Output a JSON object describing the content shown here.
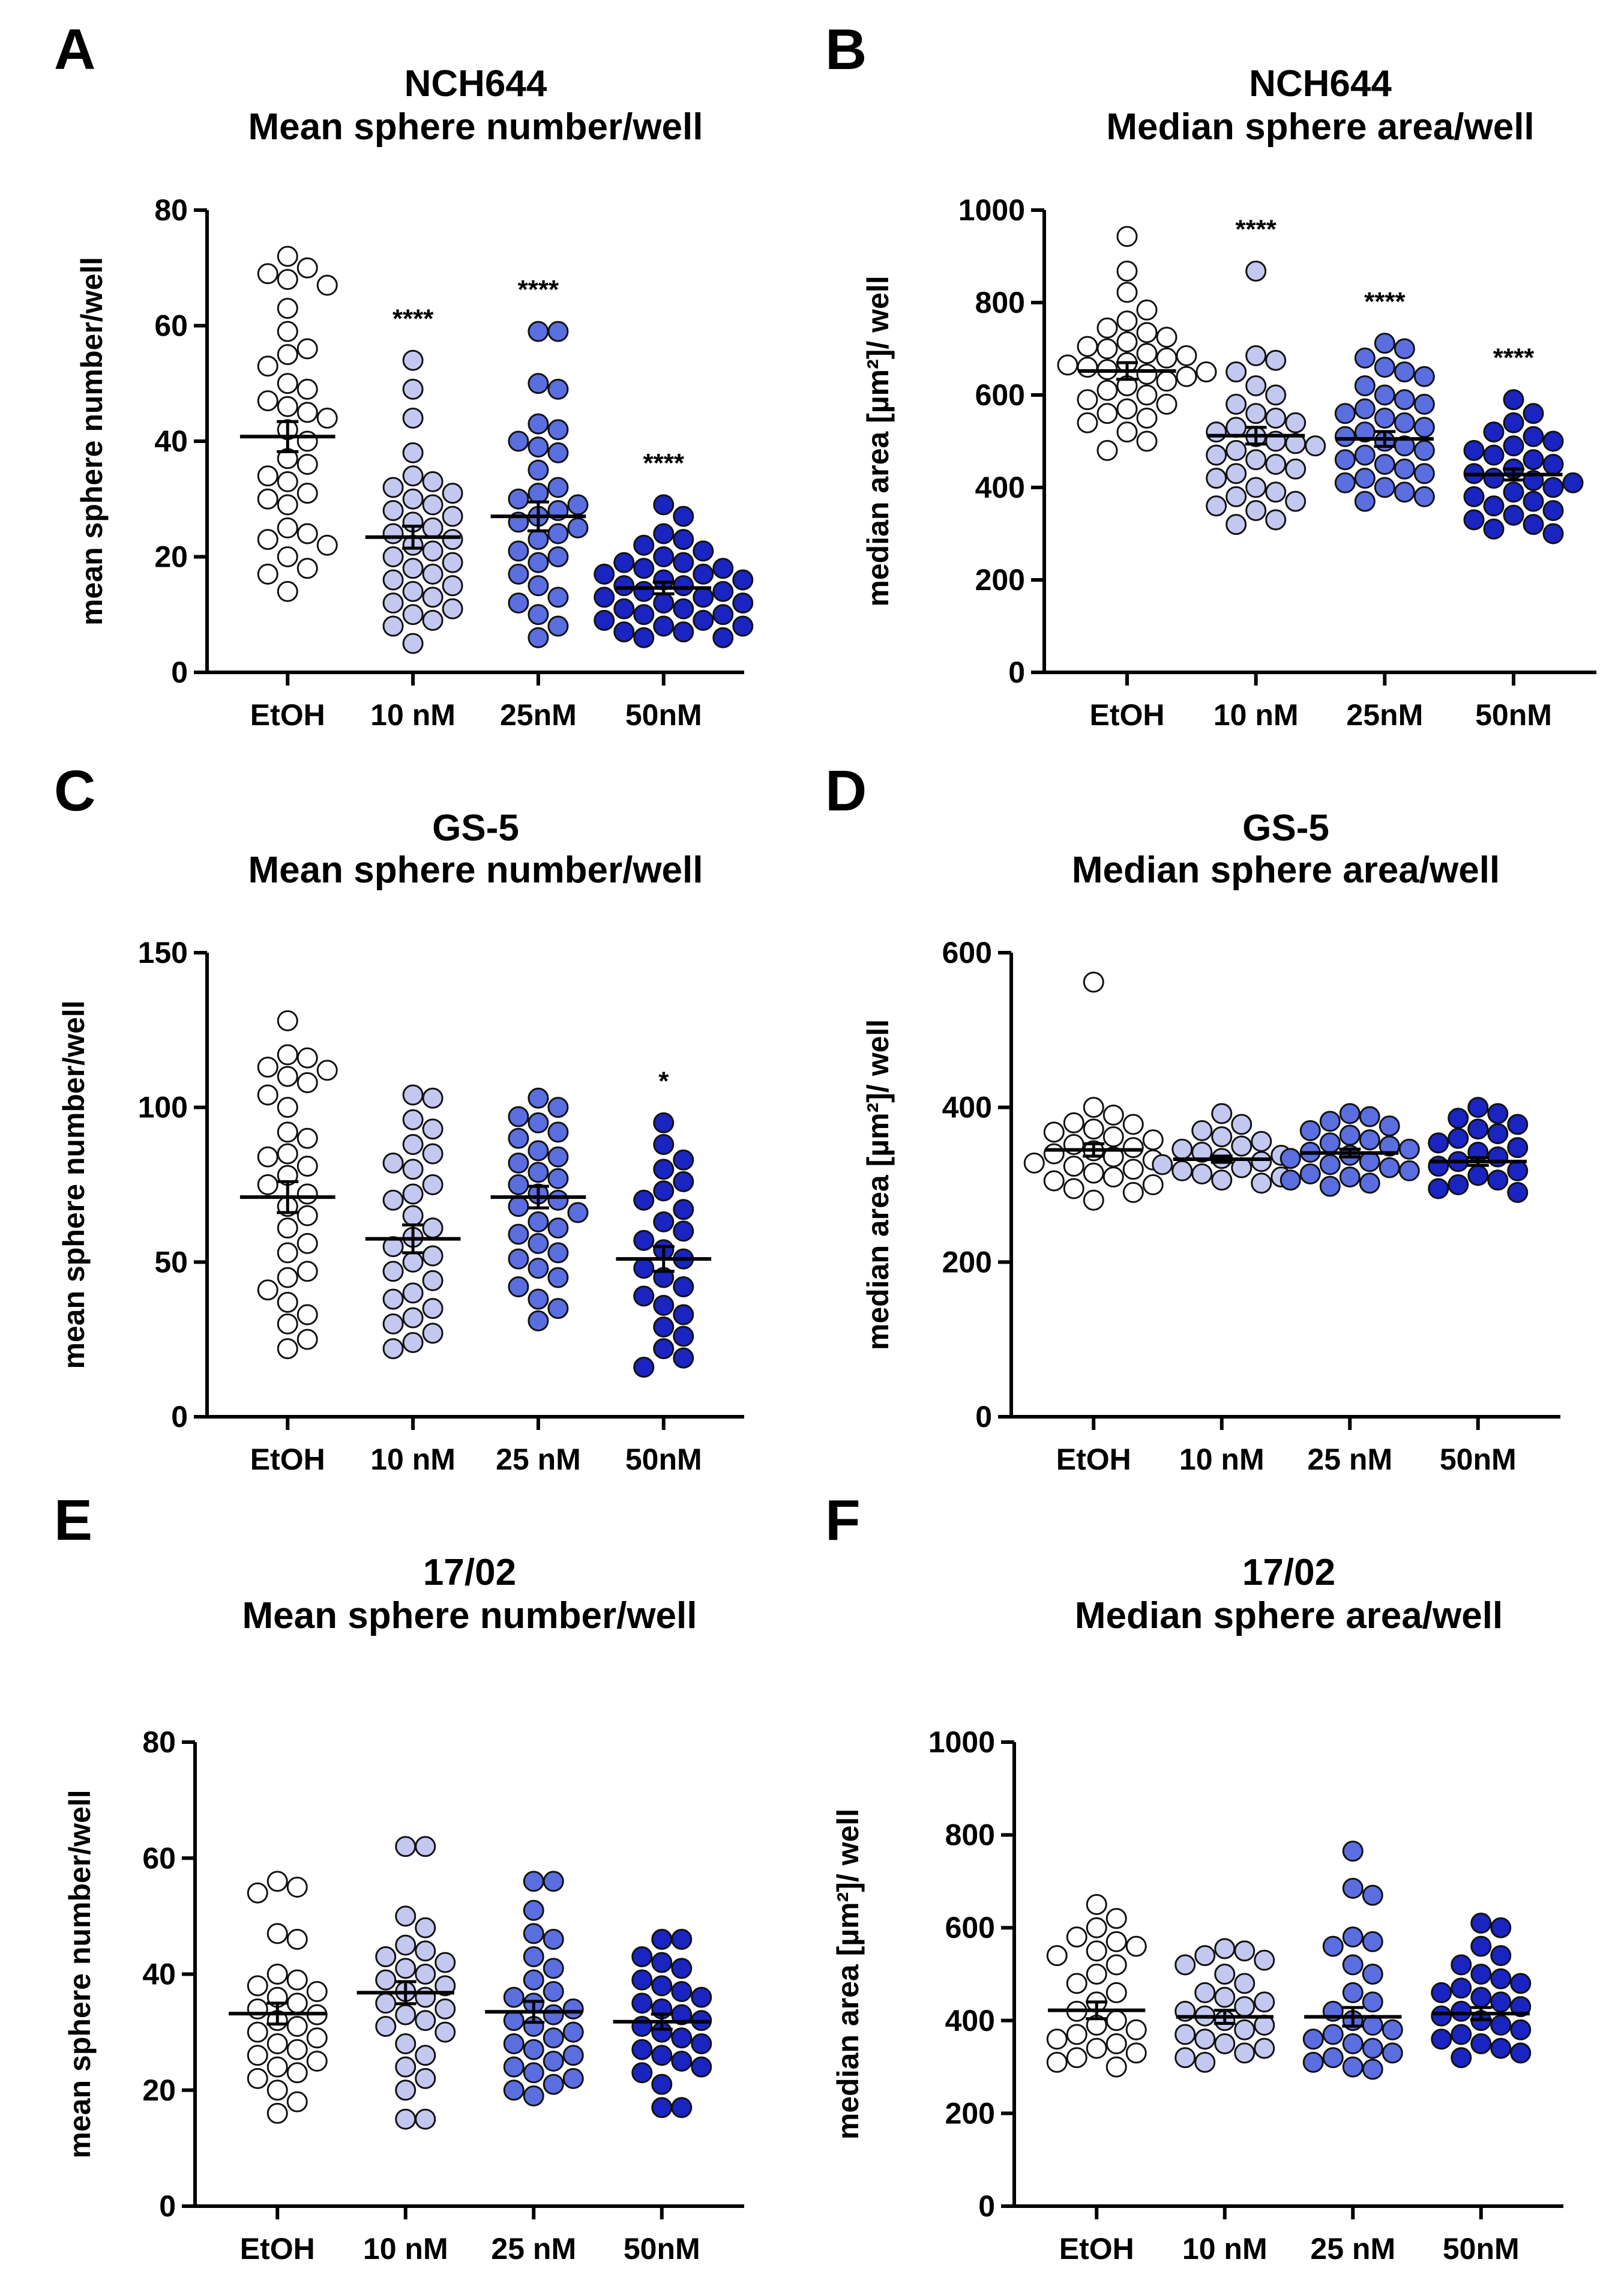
{
  "colors": {
    "EtOH": "#ffffff",
    "10 nM": "#c3c8f0",
    "25 nM": "#5a6ee0",
    "50 nM": "#1a24c0",
    "stroke": "#111111"
  },
  "chart_data": [
    {
      "type": "scatter",
      "panel": "A",
      "title": [
        "NCH644",
        "Mean sphere number/well"
      ],
      "ylabel": "mean sphere number/well",
      "ylim": [
        0,
        80
      ],
      "yticks": [
        0,
        20,
        40,
        60,
        80
      ],
      "categories": [
        "EtOH",
        "10 nM",
        "25nM",
        "50nM"
      ],
      "means": [
        40.8,
        23.4,
        27.0,
        14.6
      ],
      "sem": [
        2.6,
        1.9,
        2.5,
        1.0
      ],
      "significance": [
        "",
        "****",
        "****",
        "****"
      ],
      "values": [
        [
          72,
          70,
          69,
          68,
          67,
          63,
          59,
          56,
          55,
          53,
          50,
          49,
          47,
          46,
          45,
          44,
          42,
          40,
          37,
          36,
          34,
          33,
          31,
          30,
          29,
          25,
          24,
          23,
          22,
          20,
          18,
          17,
          14
        ],
        [
          54,
          49,
          44,
          38,
          34,
          33,
          32,
          31,
          30,
          29,
          28,
          27,
          26,
          25,
          24,
          23,
          22,
          21,
          20,
          19,
          18,
          17,
          16,
          15,
          14,
          13,
          12,
          11,
          10,
          9,
          8,
          5
        ],
        [
          59,
          59,
          50,
          49,
          43,
          42,
          40,
          39,
          38,
          35,
          32,
          31,
          30,
          29,
          28,
          27,
          26,
          25,
          24,
          23,
          21,
          20,
          19,
          17,
          15,
          13,
          12,
          10,
          8,
          6
        ],
        [
          29,
          27,
          24,
          23,
          22,
          21,
          20,
          19,
          19,
          18,
          18,
          17,
          17,
          16,
          16,
          15,
          15,
          14,
          14,
          13,
          13,
          12,
          12,
          11,
          11,
          10,
          10,
          9,
          9,
          8,
          8,
          7,
          7,
          6,
          6
        ]
      ]
    },
    {
      "type": "scatter",
      "panel": "B",
      "title": [
        "NCH644",
        "Median sphere area/well"
      ],
      "ylabel": "median area [µm²]/ well",
      "ylim": [
        0,
        1000
      ],
      "yticks": [
        0,
        200,
        400,
        600,
        800,
        1000
      ],
      "categories": [
        "EtOH",
        "10 nM",
        "25nM",
        "50nM"
      ],
      "means": [
        652,
        512,
        505,
        428
      ],
      "sem": [
        18,
        18,
        16,
        12
      ],
      "significance": [
        "",
        "****",
        "****",
        "****"
      ],
      "values": [
        [
          943,
          868,
          822,
          784,
          760,
          745,
          735,
          725,
          715,
          705,
          700,
          690,
          685,
          680,
          670,
          665,
          660,
          655,
          650,
          645,
          640,
          630,
          620,
          610,
          600,
          590,
          580,
          570,
          560,
          550,
          540,
          520,
          500,
          480
        ],
        [
          868,
          685,
          675,
          650,
          620,
          600,
          580,
          560,
          550,
          540,
          530,
          520,
          510,
          500,
          495,
          490,
          480,
          470,
          460,
          450,
          440,
          430,
          420,
          400,
          390,
          380,
          370,
          360,
          350,
          330,
          320
        ],
        [
          712,
          700,
          680,
          660,
          650,
          640,
          620,
          600,
          590,
          580,
          570,
          560,
          550,
          540,
          530,
          520,
          510,
          500,
          490,
          480,
          470,
          460,
          450,
          440,
          430,
          420,
          410,
          400,
          390,
          380,
          370
        ],
        [
          590,
          560,
          540,
          520,
          510,
          500,
          490,
          480,
          470,
          460,
          450,
          440,
          430,
          420,
          415,
          410,
          400,
          390,
          380,
          370,
          360,
          350,
          340,
          330,
          320,
          310,
          300
        ]
      ]
    },
    {
      "type": "scatter",
      "panel": "C",
      "title": [
        "GS-5",
        "Mean sphere number/well"
      ],
      "ylabel": "mean sphere number/well",
      "ylim": [
        0,
        150
      ],
      "yticks": [
        0,
        50,
        100,
        150
      ],
      "categories": [
        "EtOH",
        "10 nM",
        "25 nM",
        "50nM"
      ],
      "means": [
        71,
        57.5,
        71,
        51
      ],
      "sem": [
        5,
        4.5,
        3.5,
        4
      ],
      "significance": [
        "",
        "",
        "",
        "*"
      ],
      "values": [
        [
          128,
          117,
          116,
          113,
          112,
          110,
          108,
          104,
          100,
          92,
          90,
          85,
          84,
          81,
          78,
          75,
          72,
          68,
          65,
          61,
          56,
          53,
          47,
          45,
          41,
          37,
          33,
          30,
          25,
          22
        ],
        [
          104,
          103,
          96,
          93,
          88,
          85,
          82,
          80,
          75,
          72,
          70,
          65,
          61,
          58,
          55,
          52,
          50,
          47,
          44,
          40,
          38,
          35,
          32,
          30,
          27,
          24,
          22
        ],
        [
          103,
          100,
          97,
          95,
          92,
          90,
          86,
          84,
          82,
          79,
          77,
          75,
          72,
          70,
          68,
          66,
          63,
          61,
          59,
          56,
          53,
          51,
          48,
          45,
          42,
          38,
          35,
          31
        ],
        [
          95,
          88,
          83,
          80,
          76,
          73,
          70,
          67,
          63,
          60,
          57,
          54,
          51,
          48,
          45,
          42,
          39,
          36,
          33,
          29,
          26,
          22,
          19,
          16
        ]
      ]
    },
    {
      "type": "scatter",
      "panel": "D",
      "title": [
        "GS-5",
        "Median sphere area/well"
      ],
      "ylabel": "median area [µm²]/ well",
      "ylim": [
        0,
        600
      ],
      "yticks": [
        0,
        200,
        400,
        600
      ],
      "categories": [
        "EtOH",
        "10 nM",
        "25 nM",
        "50nM"
      ],
      "means": [
        345,
        333,
        341,
        330
      ],
      "sem": [
        8,
        4,
        5,
        5
      ],
      "significance": [
        "",
        "",
        "",
        ""
      ],
      "values": [
        [
          562,
          400,
          390,
          380,
          378,
          372,
          368,
          362,
          358,
          352,
          348,
          344,
          340,
          336,
          332,
          328,
          324,
          320,
          315,
          310,
          305,
          300,
          295,
          290,
          280
        ],
        [
          392,
          378,
          370,
          362,
          356,
          350,
          346,
          342,
          338,
          334,
          330,
          326,
          322,
          318,
          314,
          310,
          306,
          302
        ],
        [
          392,
          388,
          382,
          376,
          370,
          364,
          358,
          354,
          350,
          346,
          342,
          338,
          334,
          330,
          326,
          322,
          318,
          314,
          310,
          306,
          302,
          298
        ],
        [
          400,
          392,
          386,
          378,
          372,
          366,
          360,
          354,
          348,
          342,
          336,
          330,
          324,
          318,
          312,
          306,
          300,
          295,
          290
        ]
      ]
    },
    {
      "type": "scatter",
      "panel": "E",
      "title": [
        "17/02",
        "Mean sphere number/well"
      ],
      "ylabel": "mean sphere number/well",
      "ylim": [
        0,
        80
      ],
      "yticks": [
        0,
        20,
        40,
        60,
        80
      ],
      "categories": [
        "EtOH",
        "10 nM",
        "25 nM",
        "50nM"
      ],
      "means": [
        33.2,
        36.8,
        33.5,
        31.8
      ],
      "sem": [
        1.8,
        1.9,
        1.8,
        1.3
      ],
      "significance": [
        "",
        "",
        "",
        ""
      ],
      "values": [
        [
          56,
          55,
          54,
          47,
          46,
          40,
          39,
          38,
          37,
          36,
          35,
          34,
          33,
          32,
          31,
          30,
          29,
          28,
          27,
          26,
          25,
          24,
          23,
          22,
          20,
          18,
          16
        ],
        [
          62,
          62,
          50,
          48,
          45,
          44,
          43,
          42,
          41,
          40,
          39,
          38,
          37,
          36,
          35,
          34,
          33,
          32,
          31,
          30,
          28,
          26,
          24,
          22,
          20,
          15,
          15
        ],
        [
          56,
          56,
          51,
          47,
          46,
          43,
          41,
          39,
          37,
          36,
          35,
          34,
          33,
          32,
          31,
          30,
          29,
          28,
          27,
          26,
          25,
          24,
          23,
          22,
          21,
          20,
          19
        ],
        [
          46,
          46,
          43,
          42,
          41,
          39,
          38,
          37,
          36,
          35,
          34,
          33,
          32,
          31,
          30,
          29,
          28,
          27,
          26,
          25,
          24,
          23,
          21,
          17,
          17
        ]
      ]
    },
    {
      "type": "scatter",
      "panel": "F",
      "title": [
        "17/02",
        "Median sphere area/well"
      ],
      "ylabel": "median area [µm²]/ well",
      "ylim": [
        0,
        1000
      ],
      "yticks": [
        0,
        200,
        400,
        600,
        800,
        1000
      ],
      "categories": [
        "EtOH",
        "10 nM",
        "25 nM",
        "50nM"
      ],
      "means": [
        422,
        408,
        408,
        415
      ],
      "sem": [
        18,
        14,
        20,
        13
      ],
      "significance": [
        "",
        "",
        "",
        ""
      ],
      "values": [
        [
          650,
          620,
          600,
          580,
          570,
          560,
          550,
          540,
          520,
          500,
          480,
          460,
          440,
          420,
          400,
          390,
          380,
          370,
          360,
          350,
          340,
          330,
          320,
          310,
          300
        ],
        [
          555,
          550,
          540,
          530,
          520,
          500,
          480,
          460,
          450,
          440,
          430,
          420,
          410,
          400,
          390,
          380,
          370,
          360,
          350,
          340,
          330,
          320,
          310
        ],
        [
          765,
          685,
          670,
          580,
          570,
          560,
          520,
          500,
          460,
          440,
          420,
          400,
          390,
          380,
          370,
          360,
          350,
          340,
          330,
          320,
          310,
          300,
          295
        ],
        [
          610,
          600,
          560,
          540,
          520,
          500,
          490,
          480,
          470,
          460,
          450,
          440,
          430,
          420,
          410,
          400,
          390,
          380,
          370,
          360,
          350,
          340,
          330,
          320
        ]
      ]
    }
  ]
}
